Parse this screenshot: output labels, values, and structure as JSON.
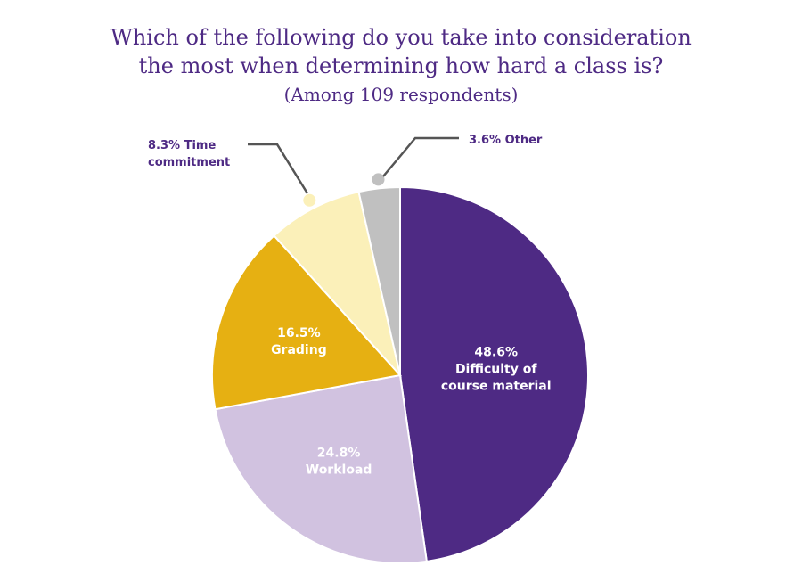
{
  "chart_data": {
    "type": "pie",
    "title_line1": "Which of the following do you take into consideration",
    "title_line2": "the most when determining how hard a class is?",
    "subtitle": "(Among 109 respondents)",
    "slices": [
      {
        "name": "Difficulty of course material",
        "value": 48.6,
        "pct_label": "48.6%",
        "label_lines": [
          "Difficulty of",
          "course material"
        ],
        "color": "#4e2a84",
        "text_color": "#ffffff"
      },
      {
        "name": "Workload",
        "value": 24.8,
        "pct_label": "24.8%",
        "label_lines": [
          "Workload"
        ],
        "color": "#d1c2e0",
        "text_color": "#ffffff"
      },
      {
        "name": "Grading",
        "value": 16.5,
        "pct_label": "16.5%",
        "label_lines": [
          "Grading"
        ],
        "color": "#e6b012",
        "text_color": "#ffffff"
      },
      {
        "name": "Time commitment",
        "value": 8.3,
        "callout_lines": [
          "8.3% Time",
          "commitment"
        ],
        "color": "#fbf0b9"
      },
      {
        "name": "Other",
        "value": 3.6,
        "callout_lines": [
          "3.6% Other"
        ],
        "color": "#c0c0c0"
      }
    ]
  }
}
